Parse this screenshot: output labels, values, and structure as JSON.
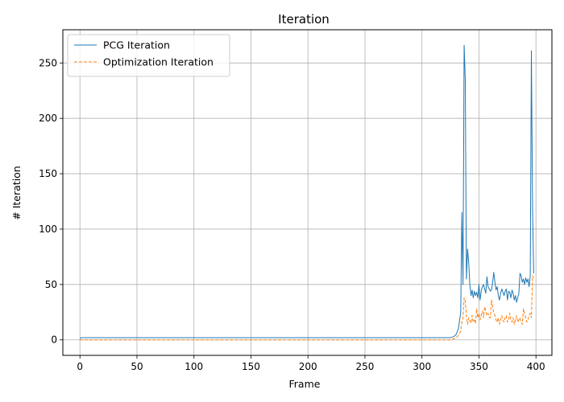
{
  "chart_data": {
    "type": "line",
    "title": "Iteration",
    "xlabel": "Frame",
    "ylabel": "# Iteration",
    "xlim": [
      -15,
      414
    ],
    "ylim": [
      -14,
      280
    ],
    "xticks": [
      0,
      50,
      100,
      150,
      200,
      250,
      300,
      350,
      400
    ],
    "yticks": [
      0,
      50,
      100,
      150,
      200,
      250
    ],
    "grid": true,
    "legend_position": "upper-left",
    "series": [
      {
        "name": "PCG Iteration",
        "color": "#1f77b4",
        "style": "solid",
        "x": [
          0,
          1,
          325,
          328,
          330,
          332,
          334,
          335,
          336,
          337,
          338,
          339,
          340,
          341,
          342,
          343,
          344,
          345,
          346,
          347,
          348,
          349,
          350,
          351,
          352,
          353,
          354,
          355,
          356,
          357,
          358,
          359,
          360,
          361,
          362,
          363,
          364,
          365,
          366,
          367,
          368,
          369,
          370,
          371,
          372,
          373,
          374,
          375,
          376,
          377,
          378,
          379,
          380,
          381,
          382,
          383,
          384,
          385,
          386,
          387,
          388,
          389,
          390,
          391,
          392,
          393,
          394,
          395,
          396,
          397,
          398
        ],
        "values": [
          1,
          2,
          2,
          3,
          5,
          10,
          25,
          115,
          50,
          266,
          235,
          55,
          82,
          70,
          50,
          40,
          45,
          38,
          44,
          40,
          43,
          38,
          50,
          36,
          44,
          48,
          50,
          46,
          42,
          57,
          48,
          46,
          44,
          45,
          52,
          61,
          52,
          45,
          48,
          40,
          36,
          42,
          46,
          43,
          40,
          44,
          46,
          36,
          44,
          43,
          38,
          45,
          42,
          36,
          40,
          34,
          38,
          42,
          60,
          58,
          52,
          55,
          50,
          56,
          52,
          55,
          48,
          58,
          261,
          120,
          60
        ]
      },
      {
        "name": "Optimization Iteration",
        "color": "#ff7f0e",
        "style": "dashed",
        "x": [
          0,
          325,
          328,
          330,
          332,
          334,
          335,
          336,
          337,
          338,
          339,
          340,
          341,
          342,
          343,
          344,
          345,
          346,
          347,
          348,
          349,
          350,
          351,
          352,
          353,
          354,
          355,
          356,
          357,
          358,
          359,
          360,
          361,
          362,
          363,
          364,
          365,
          366,
          367,
          368,
          369,
          370,
          371,
          372,
          373,
          374,
          375,
          376,
          377,
          378,
          379,
          380,
          381,
          382,
          383,
          384,
          385,
          386,
          387,
          388,
          389,
          390,
          391,
          392,
          393,
          394,
          395,
          396,
          397,
          398
        ],
        "values": [
          0,
          0,
          1,
          2,
          4,
          8,
          16,
          20,
          38,
          35,
          22,
          14,
          20,
          17,
          15,
          22,
          16,
          18,
          15,
          28,
          20,
          24,
          18,
          22,
          26,
          20,
          30,
          26,
          22,
          24,
          20,
          20,
          36,
          30,
          24,
          22,
          18,
          16,
          20,
          14,
          18,
          22,
          18,
          16,
          20,
          22,
          16,
          18,
          24,
          18,
          16,
          20,
          14,
          18,
          22,
          16,
          18,
          20,
          16,
          14,
          28,
          24,
          20,
          16,
          18,
          22,
          24,
          20,
          58,
          56
        ]
      }
    ]
  }
}
